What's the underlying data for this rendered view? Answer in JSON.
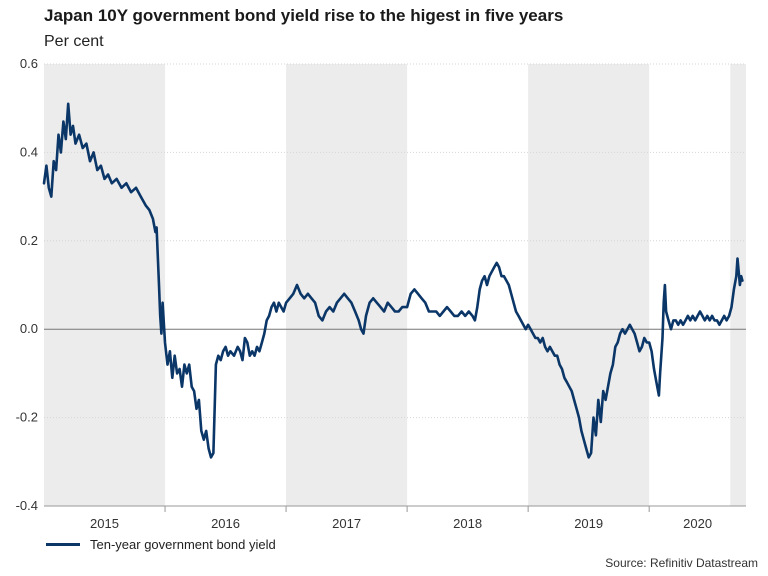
{
  "chart_data": {
    "type": "line",
    "title": "Japan 10Y government bond yield rise to the higest in five years",
    "subtitle": "Per cent",
    "ylim": [
      -0.4,
      0.6
    ],
    "yticks": [
      "0.6",
      "0.4",
      "0.2",
      "0.0",
      "-0.2",
      "-0.4"
    ],
    "ytick_values": [
      0.6,
      0.4,
      0.2,
      0.0,
      -0.2,
      -0.4
    ],
    "xlim": [
      2015.0,
      2020.8
    ],
    "year_labels": [
      "2015",
      "2016",
      "2017",
      "2018",
      "2019",
      "2020"
    ],
    "year_starts": [
      2015,
      2016,
      2017,
      2018,
      2019,
      2020
    ],
    "shaded_years": [
      2015,
      2017,
      2019
    ],
    "shaded_extra": [
      2020.67,
      2020.8
    ],
    "grid": "horizontal",
    "series": [
      {
        "name": "Ten-year government bond yield",
        "color": "#0b3668",
        "points": [
          [
            2015.0,
            0.33
          ],
          [
            2015.02,
            0.37
          ],
          [
            2015.04,
            0.32
          ],
          [
            2015.06,
            0.3
          ],
          [
            2015.08,
            0.38
          ],
          [
            2015.1,
            0.36
          ],
          [
            2015.12,
            0.44
          ],
          [
            2015.14,
            0.4
          ],
          [
            2015.16,
            0.47
          ],
          [
            2015.18,
            0.43
          ],
          [
            2015.2,
            0.51
          ],
          [
            2015.22,
            0.44
          ],
          [
            2015.24,
            0.46
          ],
          [
            2015.26,
            0.42
          ],
          [
            2015.29,
            0.44
          ],
          [
            2015.32,
            0.41
          ],
          [
            2015.35,
            0.42
          ],
          [
            2015.38,
            0.38
          ],
          [
            2015.41,
            0.4
          ],
          [
            2015.44,
            0.36
          ],
          [
            2015.47,
            0.37
          ],
          [
            2015.5,
            0.34
          ],
          [
            2015.53,
            0.35
          ],
          [
            2015.56,
            0.33
          ],
          [
            2015.6,
            0.34
          ],
          [
            2015.64,
            0.32
          ],
          [
            2015.68,
            0.33
          ],
          [
            2015.72,
            0.31
          ],
          [
            2015.76,
            0.32
          ],
          [
            2015.8,
            0.3
          ],
          [
            2015.84,
            0.28
          ],
          [
            2015.87,
            0.27
          ],
          [
            2015.9,
            0.25
          ],
          [
            2015.92,
            0.22
          ],
          [
            2015.93,
            0.23
          ],
          [
            2015.95,
            0.1
          ],
          [
            2015.96,
            0.03
          ],
          [
            2015.97,
            -0.01
          ],
          [
            2015.98,
            0.06
          ],
          [
            2016.0,
            -0.03
          ],
          [
            2016.02,
            -0.08
          ],
          [
            2016.04,
            -0.05
          ],
          [
            2016.06,
            -0.11
          ],
          [
            2016.08,
            -0.06
          ],
          [
            2016.1,
            -0.1
          ],
          [
            2016.12,
            -0.09
          ],
          [
            2016.14,
            -0.13
          ],
          [
            2016.16,
            -0.08
          ],
          [
            2016.18,
            -0.1
          ],
          [
            2016.2,
            -0.08
          ],
          [
            2016.22,
            -0.13
          ],
          [
            2016.24,
            -0.14
          ],
          [
            2016.26,
            -0.18
          ],
          [
            2016.28,
            -0.16
          ],
          [
            2016.3,
            -0.23
          ],
          [
            2016.32,
            -0.25
          ],
          [
            2016.34,
            -0.23
          ],
          [
            2016.36,
            -0.27
          ],
          [
            2016.38,
            -0.29
          ],
          [
            2016.4,
            -0.28
          ],
          [
            2016.42,
            -0.08
          ],
          [
            2016.44,
            -0.06
          ],
          [
            2016.46,
            -0.07
          ],
          [
            2016.48,
            -0.05
          ],
          [
            2016.5,
            -0.04
          ],
          [
            2016.52,
            -0.06
          ],
          [
            2016.54,
            -0.05
          ],
          [
            2016.57,
            -0.06
          ],
          [
            2016.6,
            -0.04
          ],
          [
            2016.62,
            -0.05
          ],
          [
            2016.64,
            -0.07
          ],
          [
            2016.66,
            -0.02
          ],
          [
            2016.68,
            -0.03
          ],
          [
            2016.7,
            -0.06
          ],
          [
            2016.72,
            -0.05
          ],
          [
            2016.74,
            -0.06
          ],
          [
            2016.76,
            -0.04
          ],
          [
            2016.78,
            -0.05
          ],
          [
            2016.8,
            -0.03
          ],
          [
            2016.82,
            -0.01
          ],
          [
            2016.84,
            0.02
          ],
          [
            2016.86,
            0.03
          ],
          [
            2016.88,
            0.05
          ],
          [
            2016.9,
            0.06
          ],
          [
            2016.92,
            0.04
          ],
          [
            2016.94,
            0.06
          ],
          [
            2016.96,
            0.05
          ],
          [
            2016.98,
            0.04
          ],
          [
            2017.0,
            0.06
          ],
          [
            2017.03,
            0.07
          ],
          [
            2017.06,
            0.08
          ],
          [
            2017.09,
            0.1
          ],
          [
            2017.12,
            0.08
          ],
          [
            2017.15,
            0.07
          ],
          [
            2017.18,
            0.08
          ],
          [
            2017.21,
            0.07
          ],
          [
            2017.24,
            0.06
          ],
          [
            2017.27,
            0.03
          ],
          [
            2017.3,
            0.02
          ],
          [
            2017.33,
            0.04
          ],
          [
            2017.36,
            0.05
          ],
          [
            2017.39,
            0.04
          ],
          [
            2017.42,
            0.06
          ],
          [
            2017.45,
            0.07
          ],
          [
            2017.48,
            0.08
          ],
          [
            2017.51,
            0.07
          ],
          [
            2017.54,
            0.06
          ],
          [
            2017.57,
            0.04
          ],
          [
            2017.6,
            0.02
          ],
          [
            2017.62,
            0.0
          ],
          [
            2017.64,
            -0.01
          ],
          [
            2017.66,
            0.03
          ],
          [
            2017.69,
            0.06
          ],
          [
            2017.72,
            0.07
          ],
          [
            2017.75,
            0.06
          ],
          [
            2017.78,
            0.05
          ],
          [
            2017.81,
            0.04
          ],
          [
            2017.84,
            0.06
          ],
          [
            2017.87,
            0.05
          ],
          [
            2017.9,
            0.04
          ],
          [
            2017.93,
            0.04
          ],
          [
            2017.96,
            0.05
          ],
          [
            2018.0,
            0.05
          ],
          [
            2018.03,
            0.08
          ],
          [
            2018.06,
            0.09
          ],
          [
            2018.09,
            0.08
          ],
          [
            2018.12,
            0.07
          ],
          [
            2018.15,
            0.06
          ],
          [
            2018.18,
            0.04
          ],
          [
            2018.21,
            0.04
          ],
          [
            2018.24,
            0.04
          ],
          [
            2018.27,
            0.03
          ],
          [
            2018.3,
            0.04
          ],
          [
            2018.33,
            0.05
          ],
          [
            2018.36,
            0.04
          ],
          [
            2018.39,
            0.03
          ],
          [
            2018.42,
            0.03
          ],
          [
            2018.45,
            0.04
          ],
          [
            2018.48,
            0.03
          ],
          [
            2018.51,
            0.04
          ],
          [
            2018.54,
            0.03
          ],
          [
            2018.56,
            0.02
          ],
          [
            2018.58,
            0.05
          ],
          [
            2018.6,
            0.09
          ],
          [
            2018.62,
            0.11
          ],
          [
            2018.64,
            0.12
          ],
          [
            2018.66,
            0.1
          ],
          [
            2018.68,
            0.12
          ],
          [
            2018.7,
            0.13
          ],
          [
            2018.72,
            0.14
          ],
          [
            2018.74,
            0.15
          ],
          [
            2018.76,
            0.14
          ],
          [
            2018.78,
            0.12
          ],
          [
            2018.8,
            0.12
          ],
          [
            2018.82,
            0.11
          ],
          [
            2018.84,
            0.1
          ],
          [
            2018.86,
            0.08
          ],
          [
            2018.88,
            0.06
          ],
          [
            2018.9,
            0.04
          ],
          [
            2018.92,
            0.03
          ],
          [
            2018.94,
            0.02
          ],
          [
            2018.96,
            0.01
          ],
          [
            2018.98,
            0.0
          ],
          [
            2019.0,
            0.01
          ],
          [
            2019.02,
            0.0
          ],
          [
            2019.04,
            -0.01
          ],
          [
            2019.06,
            -0.02
          ],
          [
            2019.08,
            -0.02
          ],
          [
            2019.1,
            -0.03
          ],
          [
            2019.12,
            -0.02
          ],
          [
            2019.14,
            -0.04
          ],
          [
            2019.16,
            -0.05
          ],
          [
            2019.18,
            -0.04
          ],
          [
            2019.2,
            -0.05
          ],
          [
            2019.22,
            -0.06
          ],
          [
            2019.24,
            -0.06
          ],
          [
            2019.26,
            -0.08
          ],
          [
            2019.28,
            -0.09
          ],
          [
            2019.3,
            -0.11
          ],
          [
            2019.32,
            -0.12
          ],
          [
            2019.34,
            -0.13
          ],
          [
            2019.36,
            -0.14
          ],
          [
            2019.38,
            -0.16
          ],
          [
            2019.4,
            -0.18
          ],
          [
            2019.42,
            -0.2
          ],
          [
            2019.44,
            -0.23
          ],
          [
            2019.46,
            -0.25
          ],
          [
            2019.48,
            -0.27
          ],
          [
            2019.5,
            -0.29
          ],
          [
            2019.52,
            -0.28
          ],
          [
            2019.54,
            -0.2
          ],
          [
            2019.56,
            -0.24
          ],
          [
            2019.58,
            -0.16
          ],
          [
            2019.6,
            -0.21
          ],
          [
            2019.62,
            -0.14
          ],
          [
            2019.64,
            -0.16
          ],
          [
            2019.66,
            -0.13
          ],
          [
            2019.68,
            -0.1
          ],
          [
            2019.7,
            -0.08
          ],
          [
            2019.72,
            -0.04
          ],
          [
            2019.74,
            -0.03
          ],
          [
            2019.76,
            -0.01
          ],
          [
            2019.78,
            0.0
          ],
          [
            2019.8,
            -0.01
          ],
          [
            2019.82,
            0.0
          ],
          [
            2019.84,
            0.01
          ],
          [
            2019.86,
            0.0
          ],
          [
            2019.88,
            -0.01
          ],
          [
            2019.9,
            -0.03
          ],
          [
            2019.92,
            -0.05
          ],
          [
            2019.94,
            -0.04
          ],
          [
            2019.96,
            -0.02
          ],
          [
            2019.98,
            -0.03
          ],
          [
            2020.0,
            -0.03
          ],
          [
            2020.02,
            -0.05
          ],
          [
            2020.04,
            -0.09
          ],
          [
            2020.06,
            -0.12
          ],
          [
            2020.08,
            -0.15
          ],
          [
            2020.09,
            -0.1
          ],
          [
            2020.1,
            -0.06
          ],
          [
            2020.11,
            -0.02
          ],
          [
            2020.12,
            0.06
          ],
          [
            2020.13,
            0.1
          ],
          [
            2020.14,
            0.04
          ],
          [
            2020.16,
            0.02
          ],
          [
            2020.18,
            0.0
          ],
          [
            2020.2,
            0.02
          ],
          [
            2020.22,
            0.02
          ],
          [
            2020.24,
            0.01
          ],
          [
            2020.26,
            0.02
          ],
          [
            2020.28,
            0.01
          ],
          [
            2020.3,
            0.02
          ],
          [
            2020.32,
            0.03
          ],
          [
            2020.34,
            0.02
          ],
          [
            2020.36,
            0.03
          ],
          [
            2020.38,
            0.02
          ],
          [
            2020.4,
            0.03
          ],
          [
            2020.42,
            0.04
          ],
          [
            2020.44,
            0.03
          ],
          [
            2020.46,
            0.02
          ],
          [
            2020.48,
            0.03
          ],
          [
            2020.5,
            0.02
          ],
          [
            2020.52,
            0.03
          ],
          [
            2020.54,
            0.02
          ],
          [
            2020.56,
            0.02
          ],
          [
            2020.58,
            0.01
          ],
          [
            2020.6,
            0.02
          ],
          [
            2020.62,
            0.03
          ],
          [
            2020.64,
            0.02
          ],
          [
            2020.66,
            0.03
          ],
          [
            2020.68,
            0.05
          ],
          [
            2020.7,
            0.09
          ],
          [
            2020.72,
            0.12
          ],
          [
            2020.73,
            0.16
          ],
          [
            2020.74,
            0.13
          ],
          [
            2020.75,
            0.1
          ],
          [
            2020.76,
            0.12
          ],
          [
            2020.77,
            0.11
          ]
        ]
      }
    ]
  },
  "legend": {
    "label": "Ten-year government bond yield"
  },
  "source": "Source: Refinitiv Datastream"
}
